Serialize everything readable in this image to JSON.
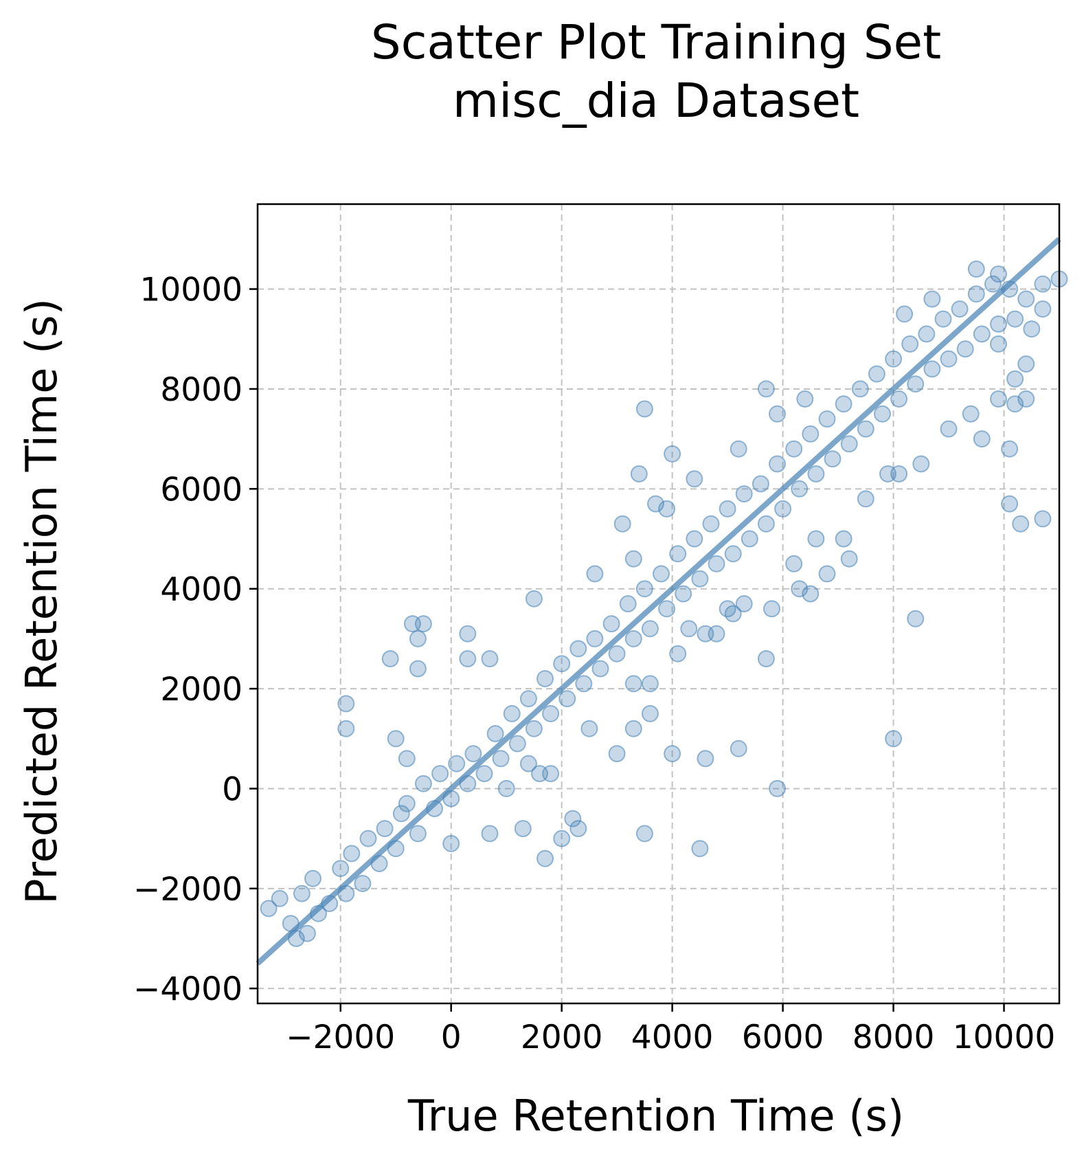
{
  "chart_data": {
    "type": "scatter",
    "title": "Scatter Plot Training Set",
    "subtitle": "misc_dia Dataset",
    "xlabel": "True Retention Time (s)",
    "ylabel": "Predicted Retention Time (s)",
    "xlim": [
      -3500,
      11000
    ],
    "ylim": [
      -4300,
      11700
    ],
    "xticks": [
      -2000,
      0,
      2000,
      4000,
      6000,
      8000,
      10000
    ],
    "xtick_labels": [
      "−2000",
      "0",
      "2000",
      "4000",
      "6000",
      "8000",
      "10000"
    ],
    "yticks": [
      -4000,
      -2000,
      0,
      2000,
      4000,
      6000,
      8000,
      10000
    ],
    "ytick_labels": [
      "−4000",
      "−2000",
      "0",
      "2000",
      "4000",
      "6000",
      "8000",
      "10000"
    ],
    "grid": true,
    "point_color": "#4682b4",
    "point_alpha": 0.3,
    "reference_line": {
      "x": [
        -3500,
        11000
      ],
      "y": [
        -3500,
        11000
      ],
      "color": "#4682b4"
    },
    "series": [
      {
        "values": "dense diagonal band of points along y = x from about (-3300,-2400) to (10700,9600), spread about ±600 s",
        "points": [
          [
            -3300,
            -2400
          ],
          [
            -3100,
            -2200
          ],
          [
            -2900,
            -2700
          ],
          [
            -2800,
            -3000
          ],
          [
            -2700,
            -2100
          ],
          [
            -2600,
            -2900
          ],
          [
            -2500,
            -1800
          ],
          [
            -2400,
            -2500
          ],
          [
            -2200,
            -2300
          ],
          [
            -2000,
            -1600
          ],
          [
            -1900,
            -2100
          ],
          [
            -1800,
            -1300
          ],
          [
            -1600,
            -1900
          ],
          [
            -1500,
            -1000
          ],
          [
            -1300,
            -1500
          ],
          [
            -1200,
            -800
          ],
          [
            -1000,
            -1200
          ],
          [
            -900,
            -500
          ],
          [
            -800,
            -300
          ],
          [
            -600,
            -900
          ],
          [
            -500,
            100
          ],
          [
            -300,
            -400
          ],
          [
            -200,
            300
          ],
          [
            0,
            -200
          ],
          [
            100,
            500
          ],
          [
            300,
            100
          ],
          [
            400,
            700
          ],
          [
            600,
            300
          ],
          [
            800,
            1100
          ],
          [
            900,
            600
          ],
          [
            1100,
            1500
          ],
          [
            1200,
            900
          ],
          [
            1400,
            1800
          ],
          [
            1500,
            1200
          ],
          [
            1700,
            2200
          ],
          [
            1800,
            1500
          ],
          [
            2000,
            2500
          ],
          [
            2100,
            1800
          ],
          [
            2300,
            2800
          ],
          [
            2400,
            2100
          ],
          [
            2600,
            3000
          ],
          [
            2700,
            2400
          ],
          [
            2900,
            3300
          ],
          [
            3000,
            2700
          ],
          [
            3200,
            3700
          ],
          [
            3300,
            3000
          ],
          [
            3500,
            4000
          ],
          [
            3600,
            3200
          ],
          [
            3800,
            4300
          ],
          [
            3900,
            3600
          ],
          [
            4100,
            4700
          ],
          [
            4200,
            3900
          ],
          [
            4400,
            5000
          ],
          [
            4500,
            4200
          ],
          [
            4700,
            5300
          ],
          [
            4800,
            4500
          ],
          [
            5000,
            5600
          ],
          [
            5100,
            4700
          ],
          [
            5300,
            5900
          ],
          [
            5400,
            5000
          ],
          [
            5600,
            6100
          ],
          [
            5700,
            5300
          ],
          [
            5900,
            6500
          ],
          [
            6000,
            5600
          ],
          [
            6200,
            6800
          ],
          [
            6300,
            6000
          ],
          [
            6500,
            7100
          ],
          [
            6600,
            6300
          ],
          [
            6800,
            7400
          ],
          [
            6900,
            6600
          ],
          [
            7100,
            7700
          ],
          [
            7200,
            6900
          ],
          [
            7400,
            8000
          ],
          [
            7500,
            7200
          ],
          [
            7700,
            8300
          ],
          [
            7800,
            7500
          ],
          [
            8000,
            8600
          ],
          [
            8100,
            7800
          ],
          [
            8300,
            8900
          ],
          [
            8400,
            8100
          ],
          [
            8600,
            9100
          ],
          [
            8700,
            8400
          ],
          [
            8900,
            9400
          ],
          [
            9000,
            8600
          ],
          [
            9200,
            9600
          ],
          [
            9300,
            8800
          ],
          [
            9500,
            9900
          ],
          [
            9600,
            9100
          ],
          [
            9800,
            10100
          ],
          [
            9900,
            9300
          ],
          [
            10100,
            10000
          ],
          [
            10200,
            9400
          ],
          [
            10400,
            9800
          ],
          [
            10500,
            9200
          ],
          [
            10700,
            9600
          ],
          [
            -1900,
            1700
          ],
          [
            -1900,
            1200
          ],
          [
            -1100,
            2600
          ],
          [
            -700,
            3300
          ],
          [
            -600,
            3000
          ],
          [
            -600,
            2400
          ],
          [
            -500,
            3300
          ],
          [
            -1000,
            1000
          ],
          [
            -800,
            600
          ],
          [
            300,
            3100
          ],
          [
            300,
            2600
          ],
          [
            700,
            2600
          ],
          [
            1500,
            3800
          ],
          [
            3500,
            7600
          ],
          [
            4000,
            6700
          ],
          [
            3400,
            6300
          ],
          [
            5700,
            8000
          ],
          [
            5900,
            7500
          ],
          [
            6400,
            7800
          ],
          [
            3100,
            5300
          ],
          [
            3700,
            5700
          ],
          [
            3900,
            5600
          ],
          [
            3300,
            4600
          ],
          [
            2600,
            4300
          ],
          [
            4400,
            6200
          ],
          [
            5200,
            6800
          ],
          [
            3000,
            700
          ],
          [
            4000,
            700
          ],
          [
            4600,
            600
          ],
          [
            5200,
            800
          ],
          [
            5900,
            0
          ],
          [
            8000,
            1000
          ],
          [
            3600,
            1500
          ],
          [
            3300,
            1200
          ],
          [
            3500,
            -900
          ],
          [
            4500,
            -1200
          ],
          [
            1300,
            -800
          ],
          [
            1700,
            -1400
          ],
          [
            2000,
            -1000
          ],
          [
            2200,
            -600
          ],
          [
            2300,
            -800
          ],
          [
            1000,
            0
          ],
          [
            1400,
            500
          ],
          [
            1600,
            300
          ],
          [
            1800,
            300
          ],
          [
            700,
            -900
          ],
          [
            0,
            -1100
          ],
          [
            2500,
            1200
          ],
          [
            3600,
            2100
          ],
          [
            3300,
            2100
          ],
          [
            4100,
            2700
          ],
          [
            4300,
            3200
          ],
          [
            4600,
            3100
          ],
          [
            4800,
            3100
          ],
          [
            5000,
            3600
          ],
          [
            5300,
            3700
          ],
          [
            5100,
            3500
          ],
          [
            5700,
            2600
          ],
          [
            5800,
            3600
          ],
          [
            6200,
            4500
          ],
          [
            6300,
            4000
          ],
          [
            6500,
            3900
          ],
          [
            6600,
            5000
          ],
          [
            6800,
            4300
          ],
          [
            7100,
            5000
          ],
          [
            7200,
            4600
          ],
          [
            7500,
            5800
          ],
          [
            7900,
            6300
          ],
          [
            8100,
            6300
          ],
          [
            8500,
            6500
          ],
          [
            8400,
            3400
          ],
          [
            9400,
            7500
          ],
          [
            9600,
            7000
          ],
          [
            9900,
            7800
          ],
          [
            10200,
            7700
          ],
          [
            10100,
            6800
          ],
          [
            10100,
            5700
          ],
          [
            10300,
            5300
          ],
          [
            10700,
            5400
          ],
          [
            10400,
            7800
          ],
          [
            10400,
            8500
          ],
          [
            10200,
            8200
          ],
          [
            9900,
            8900
          ],
          [
            9000,
            7200
          ],
          [
            8700,
            9800
          ],
          [
            8200,
            9500
          ],
          [
            9500,
            10400
          ],
          [
            9900,
            10300
          ],
          [
            10700,
            10100
          ],
          [
            11000,
            10200
          ]
        ]
      }
    ]
  }
}
